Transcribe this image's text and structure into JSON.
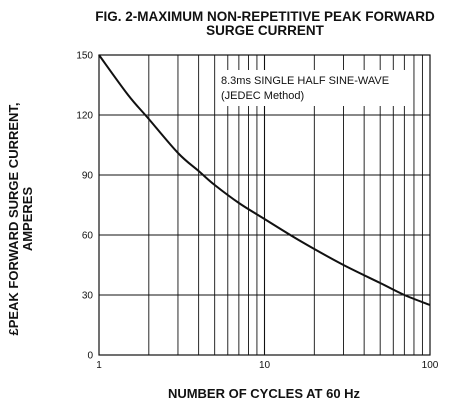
{
  "chart_data": {
    "type": "line",
    "title_line1": "FIG. 2-MAXIMUM NON-REPETITIVE PEAK FORWARD",
    "title_line2": "SURGE CURRENT",
    "xlabel": "NUMBER OF CYCLES AT 60 Hz",
    "ylabel_line1": "£PEAK  FORWARD SURGE CURRENT,",
    "ylabel_line2": "AMPERES",
    "annotation_line1": "8.3ms SINGLE HALF SINE-WAVE",
    "annotation_line2": "(JEDEC Method)",
    "x_scale": "log",
    "xlim": [
      1,
      100
    ],
    "ylim": [
      0,
      150
    ],
    "x_ticks": [
      {
        "value": 1,
        "label": "1"
      },
      {
        "value": 10,
        "label": "10"
      },
      {
        "value": 100,
        "label": "100"
      }
    ],
    "y_ticks": [
      {
        "value": 0,
        "label": "0"
      },
      {
        "value": 30,
        "label": "30"
      },
      {
        "value": 60,
        "label": "60"
      },
      {
        "value": 90,
        "label": "90"
      },
      {
        "value": 120,
        "label": "120"
      },
      {
        "value": 150,
        "label": "150"
      }
    ],
    "grid": true,
    "series": [
      {
        "x": [
          1,
          1.5,
          2,
          3,
          4,
          5,
          7,
          10,
          15,
          20,
          30,
          50,
          70,
          100
        ],
        "y": [
          150,
          130,
          118,
          101,
          92,
          85,
          76,
          68,
          59,
          53,
          45,
          36,
          30,
          25
        ]
      }
    ],
    "line_color": "#111111"
  }
}
